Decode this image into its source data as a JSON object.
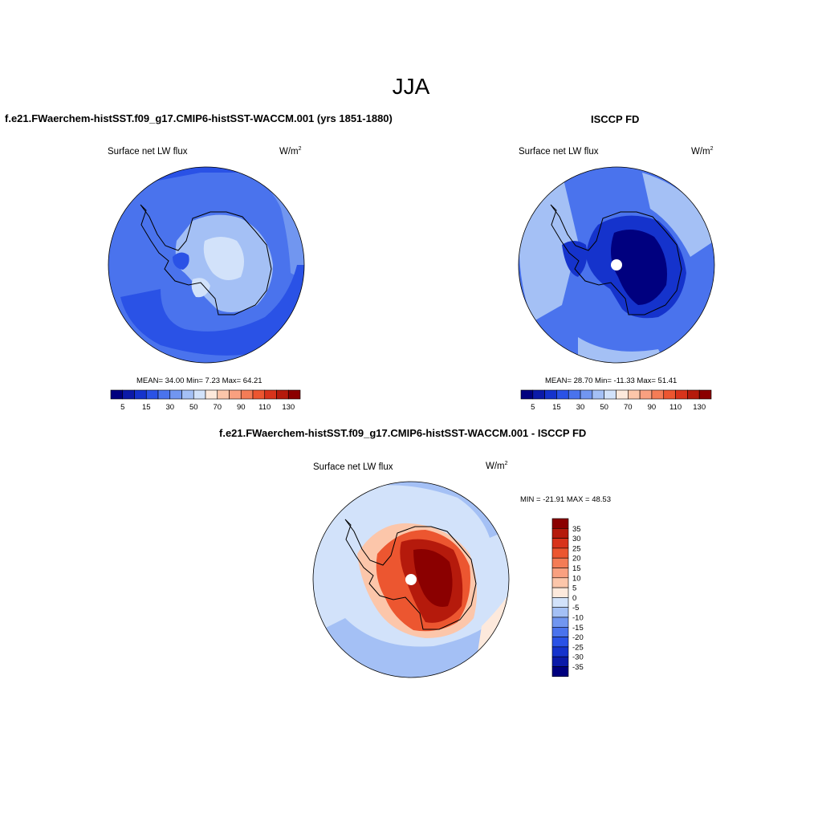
{
  "main_title": "JJA",
  "panels": [
    {
      "title": "f.e21.FWaerchem-histSST.f09_g17.CMIP6-histSST-WACCM.001 (yrs 1851-1880)",
      "variable": "Surface net LW flux",
      "units_base": "W/m",
      "units_exp": "2",
      "stats": "MEAN=  34.00  Min=   7.23  Max=  64.21",
      "colorbar": {
        "colors": [
          "#00007f",
          "#0b1aa8",
          "#1533cc",
          "#2a52e6",
          "#4a73ed",
          "#7196f0",
          "#a4c0f5",
          "#d2e2fa",
          "#fde9dc",
          "#fcc6aa",
          "#f9a080",
          "#f47c56",
          "#ec5630",
          "#d8331b",
          "#b51a0c",
          "#8b0000"
        ],
        "labels": [
          "5",
          "15",
          "30",
          "50",
          "70",
          "90",
          "110",
          "130"
        ]
      }
    },
    {
      "title": "ISCCP FD",
      "variable": "Surface net LW flux",
      "units_base": "W/m",
      "units_exp": "2",
      "stats": "MEAN=  28.70  Min= -11.33  Max=  51.41",
      "colorbar": {
        "colors": [
          "#00007f",
          "#0b1aa8",
          "#1533cc",
          "#2a52e6",
          "#4a73ed",
          "#7196f0",
          "#a4c0f5",
          "#d2e2fa",
          "#fde9dc",
          "#fcc6aa",
          "#f9a080",
          "#f47c56",
          "#ec5630",
          "#d8331b",
          "#b51a0c",
          "#8b0000"
        ],
        "labels": [
          "5",
          "15",
          "30",
          "50",
          "70",
          "90",
          "110",
          "130"
        ]
      }
    },
    {
      "title": "f.e21.FWaerchem-histSST.f09_g17.CMIP6-histSST-WACCM.001 - ISCCP FD",
      "variable": "Surface net LW flux",
      "units_base": "W/m",
      "units_exp": "2",
      "stats": "MIN = -21.91 MAX =  48.53",
      "colorbar": {
        "colors": [
          "#8b0000",
          "#b51a0c",
          "#d8331b",
          "#ec5630",
          "#f47c56",
          "#f9a080",
          "#fcc6aa",
          "#fde9dc",
          "#d2e2fa",
          "#a4c0f5",
          "#7196f0",
          "#4a73ed",
          "#2a52e6",
          "#1533cc",
          "#0b1aa8",
          "#00007f"
        ],
        "labels": [
          "35",
          "30",
          "25",
          "20",
          "15",
          "10",
          "5",
          "0",
          "-5",
          "-10",
          "-15",
          "-20",
          "-25",
          "-30",
          "-35"
        ]
      }
    }
  ]
}
